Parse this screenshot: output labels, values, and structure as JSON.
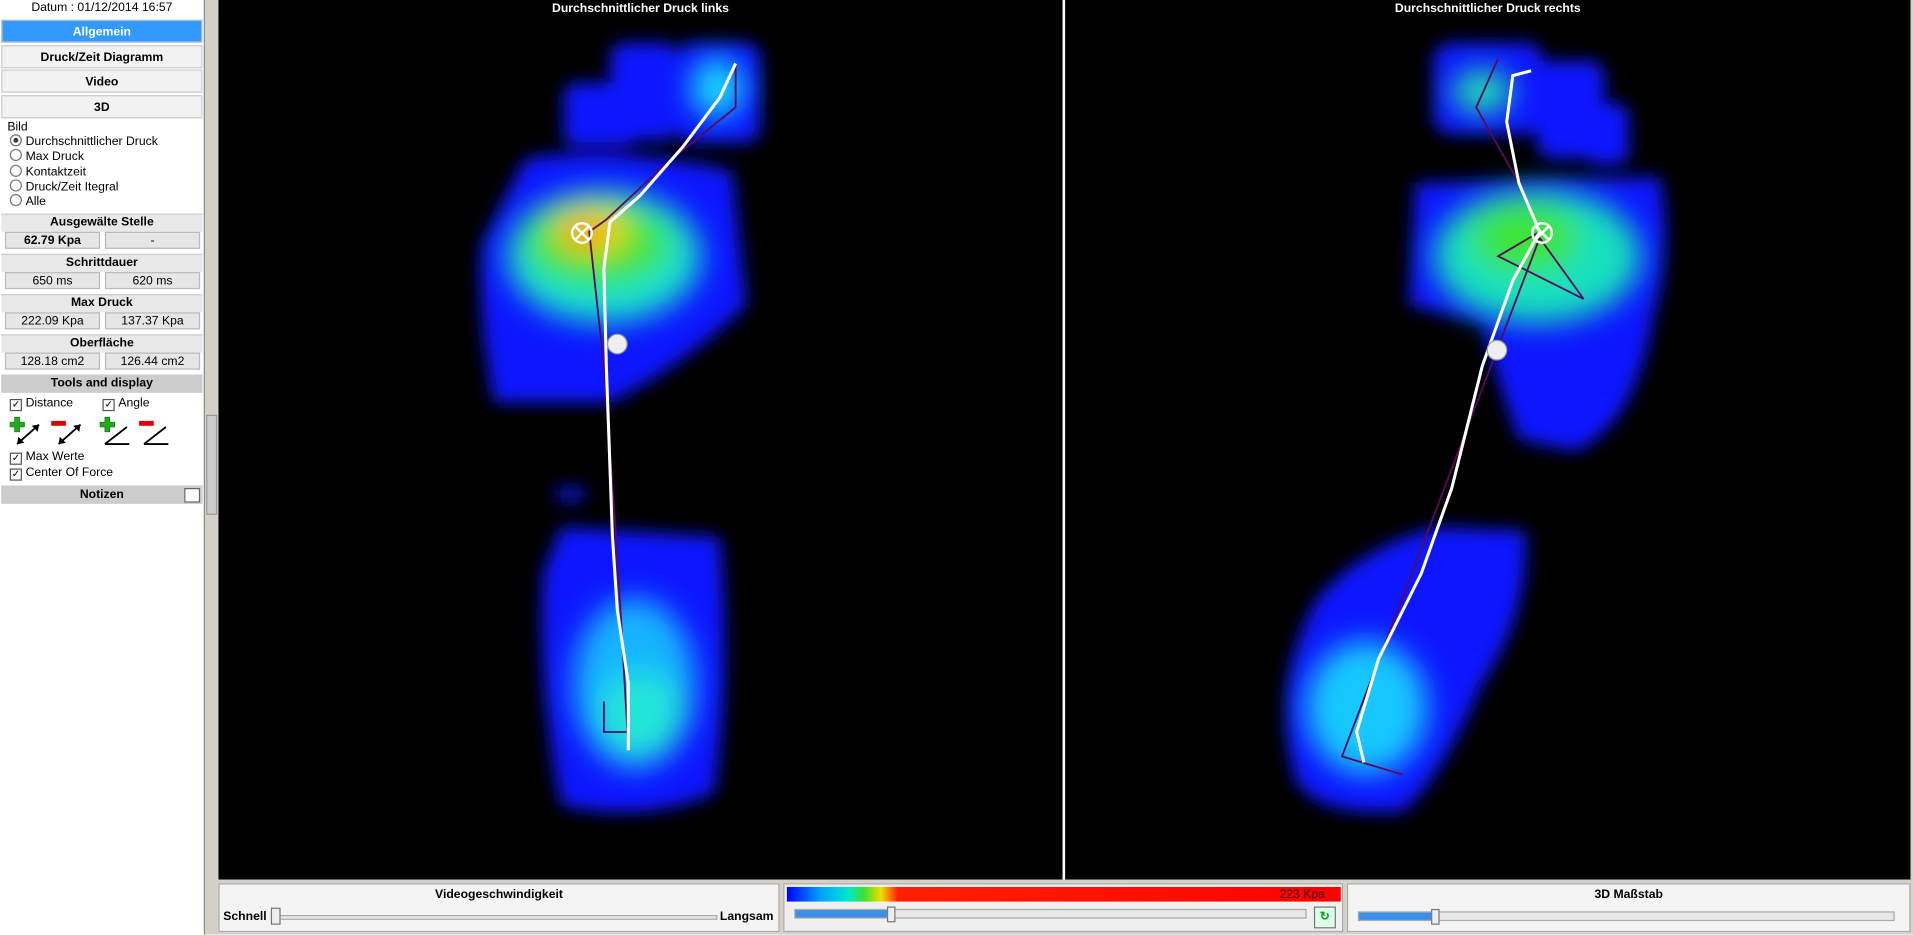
{
  "header": {
    "date": "Datum : 01/12/2014 16:57"
  },
  "tabs": [
    "Allgemein",
    "Druck/Zeit Diagramm",
    "Video",
    "3D"
  ],
  "image_group": {
    "title": "Bild",
    "options": [
      "Durchschnittlicher Druck",
      "Max Druck",
      "Kontaktzeit",
      "Druck/Zeit Itegral",
      "Alle"
    ]
  },
  "sections": [
    {
      "title": "Ausgewälte Stelle",
      "values": [
        "62.79 Kpa",
        "-"
      ]
    },
    {
      "title": "Schrittdauer",
      "values": [
        "650 ms",
        "620 ms"
      ]
    },
    {
      "title": "Max Druck",
      "values": [
        "222.09 Kpa",
        "137.37 Kpa"
      ]
    },
    {
      "title": "Oberfläche",
      "values": [
        "128.18 cm2",
        "126.44 cm2"
      ]
    }
  ],
  "tools": {
    "title": "Tools and display",
    "checkboxes": [
      "Distance",
      "Angle",
      "Max Werte",
      "Center Of Force"
    ]
  },
  "notes": {
    "title": "Notizen"
  },
  "panels": [
    "Durchschnittlicher Druck links",
    "Durchschnittlicher Druck rechts"
  ],
  "bottom": {
    "speed_title": "Videogeschwindigkeit",
    "fast": "Schnell",
    "slow": "Langsam",
    "scale_max": "223 Kpa",
    "scale_title": "3D Maßstab"
  }
}
